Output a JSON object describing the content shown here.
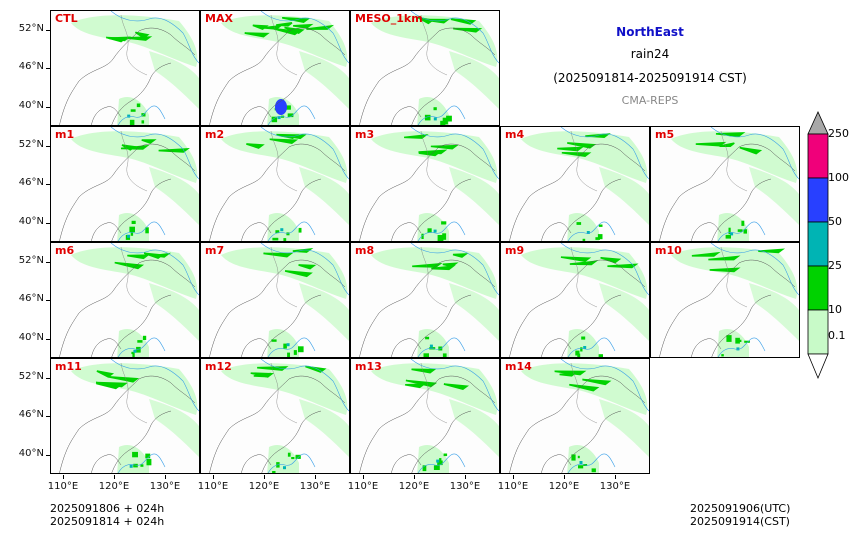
{
  "title": {
    "region": "NorthEast",
    "variable": "rain24",
    "period": "(2025091814-2025091914 CST)",
    "source": "CMA-REPS"
  },
  "footer": {
    "left_line1": "2025091806  +  024h",
    "left_line2": "2025091814  +  024h",
    "right_line1": "2025091906(UTC)",
    "right_line2": "2025091914(CST)"
  },
  "axes": {
    "lat_ticks": [
      "52°N",
      "46°N",
      "40°N"
    ],
    "lon_ticks": [
      "110°E",
      "120°E",
      "130°E"
    ]
  },
  "colorbar": {
    "levels": [
      "0.1",
      "10",
      "25",
      "50",
      "100",
      "250"
    ],
    "colors": [
      "#c8fac8",
      "#00d200",
      "#00b4b4",
      "#2840ff",
      "#f0007a",
      "#a8a8a8"
    ]
  },
  "chart_data": {
    "type": "heatmap",
    "title": "NorthEast",
    "subtitle": "rain24 (2025091814-2025091914 CST)",
    "xlabel": "",
    "ylabel": "",
    "xlim": [
      108,
      137
    ],
    "ylim": [
      37,
      55
    ],
    "x_ticks": [
      "110°E",
      "120°E",
      "130°E"
    ],
    "y_ticks": [
      "52°N",
      "46°N",
      "40°N"
    ],
    "panels": [
      {
        "name": "CTL"
      },
      {
        "name": "MAX"
      },
      {
        "name": "MESO_1km"
      },
      {
        "name": "m1"
      },
      {
        "name": "m2"
      },
      {
        "name": "m3"
      },
      {
        "name": "m4"
      },
      {
        "name": "m5"
      },
      {
        "name": "m6"
      },
      {
        "name": "m7"
      },
      {
        "name": "m8"
      },
      {
        "name": "m9"
      },
      {
        "name": "m10"
      },
      {
        "name": "m11"
      },
      {
        "name": "m12"
      },
      {
        "name": "m13"
      },
      {
        "name": "m14"
      }
    ],
    "legend_levels": [
      0.1,
      10,
      25,
      50,
      100,
      250
    ]
  }
}
